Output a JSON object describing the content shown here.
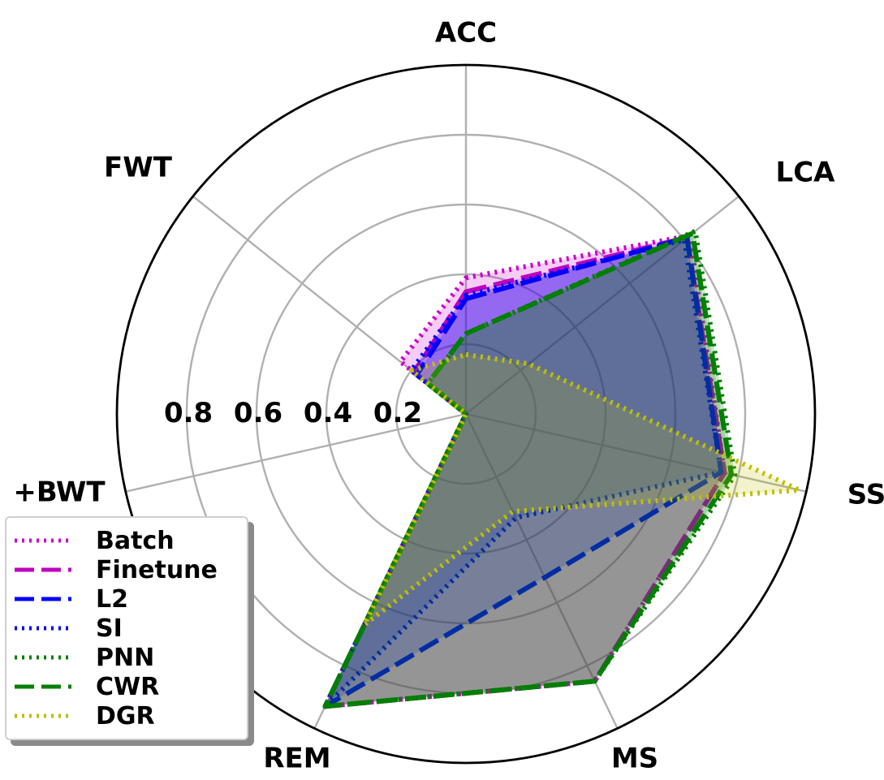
{
  "chart_data": {
    "type": "radar",
    "axes": [
      "ACC",
      "LCA",
      "SSS",
      "MS",
      "REM",
      "+BWT",
      "FWT"
    ],
    "rticks": [
      "0.2",
      "0.4",
      "0.6",
      "0.8"
    ],
    "rlim": [
      0,
      1
    ],
    "grid": true,
    "legend_position": "lower-left",
    "series": [
      {
        "name": "Batch",
        "color": "#cc00cc",
        "style": "dotted",
        "values": [
          0.39,
          0.82,
          0.76,
          0.85,
          0.93,
          0.0,
          0.24
        ]
      },
      {
        "name": "Finetune",
        "color": "#bf00bf",
        "style": "dashed",
        "values": [
          0.35,
          0.81,
          0.76,
          0.85,
          0.93,
          0.0,
          0.19
        ]
      },
      {
        "name": "L2",
        "color": "#0000ff",
        "style": "dashed",
        "values": [
          0.33,
          0.81,
          0.75,
          0.52,
          0.93,
          0.0,
          0.18
        ]
      },
      {
        "name": "SI",
        "color": "#0000ff",
        "style": "dotted",
        "values": [
          0.34,
          0.8,
          0.75,
          0.33,
          0.93,
          0.0,
          0.2
        ]
      },
      {
        "name": "PNN",
        "color": "#007f00",
        "style": "dotted",
        "values": [
          0.23,
          0.84,
          0.79,
          0.85,
          0.93,
          0.0,
          0.14
        ]
      },
      {
        "name": "CWR",
        "color": "#007f00",
        "style": "dashed",
        "values": [
          0.23,
          0.83,
          0.78,
          0.85,
          0.93,
          0.0,
          0.14
        ]
      },
      {
        "name": "DGR",
        "color": "#bfbf00",
        "style": "dotted",
        "values": [
          0.17,
          0.23,
          0.98,
          0.31,
          0.67,
          0.0,
          0.2
        ]
      }
    ]
  }
}
